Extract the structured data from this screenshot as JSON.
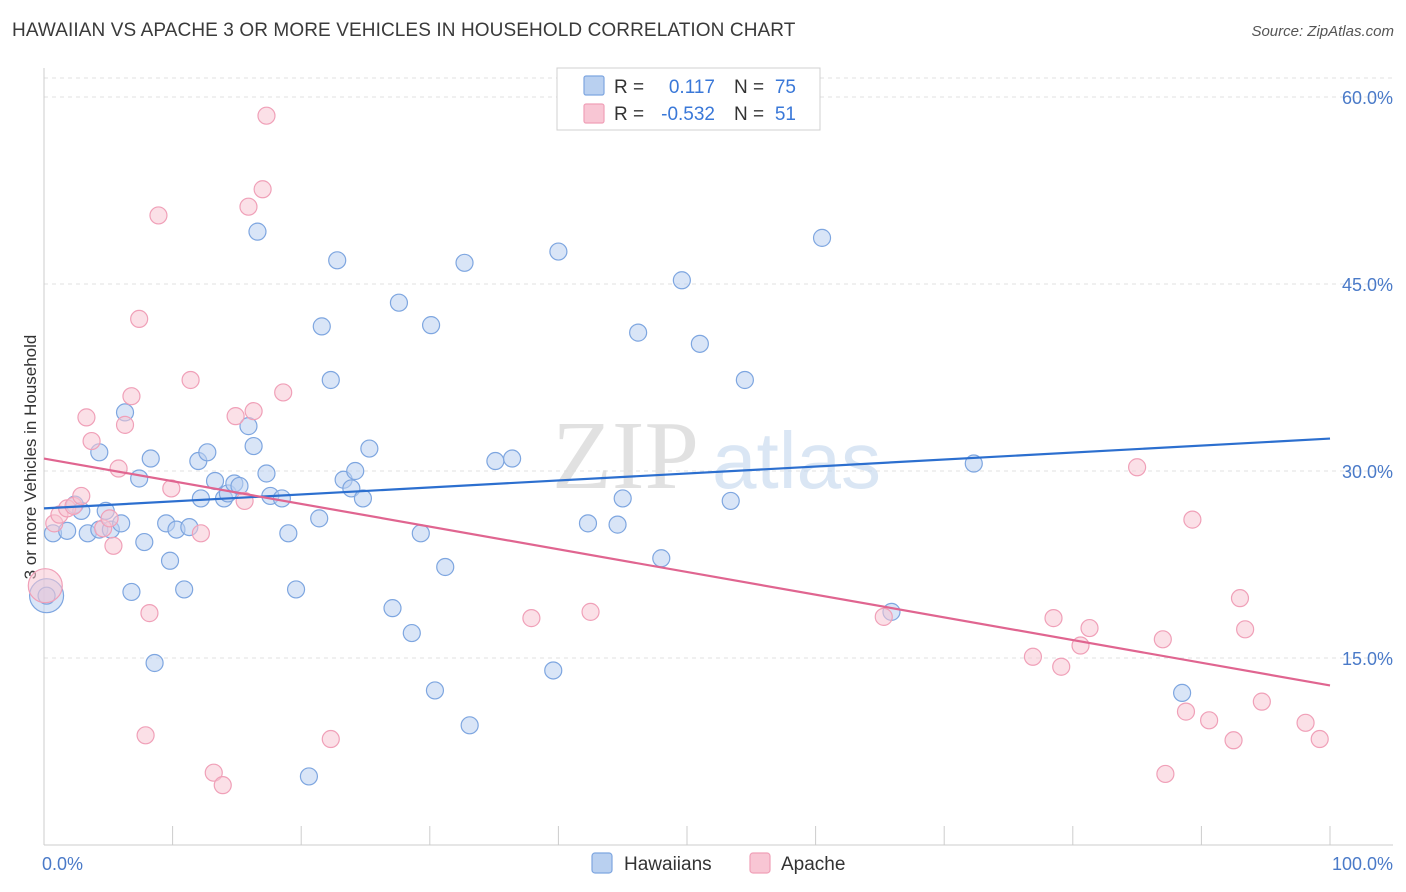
{
  "title": "HAWAIIAN VS APACHE 3 OR MORE VEHICLES IN HOUSEHOLD CORRELATION CHART",
  "source": "Source: ZipAtlas.com",
  "watermark": {
    "zip": "ZIP",
    "atlas": "atlas"
  },
  "colors": {
    "blue_fill": "#b9d0f0",
    "blue_stroke": "#7ea6e0",
    "blue_line": "#2c6fcf",
    "pink_fill": "#f8c6d4",
    "pink_stroke": "#f0a0b8",
    "pink_line": "#e06590",
    "value_text": "#3a78d8",
    "axis": "#cccccc"
  },
  "legend": {
    "rows": [
      {
        "r_label": "R =",
        "r_value": "0.117",
        "n_label": "N =",
        "n_value": "75",
        "color": "#b9d0f0",
        "stroke": "#7ea6e0"
      },
      {
        "r_label": "R =",
        "r_value": "-0.532",
        "n_label": "N =",
        "n_value": "51",
        "color": "#f8c6d4",
        "stroke": "#f0a0b8"
      }
    ]
  },
  "chart_data": {
    "type": "scatter",
    "title": "HAWAIIAN VS APACHE 3 OR MORE VEHICLES IN HOUSEHOLD CORRELATION CHART",
    "xlabel": "",
    "ylabel": "3 or more Vehicles in Household",
    "xlim": [
      0,
      100
    ],
    "ylim": [
      0,
      65
    ],
    "x_tick_labels": [
      "0.0%",
      "100.0%"
    ],
    "y_ticks": [
      15,
      30,
      45,
      60
    ],
    "y_tick_labels": [
      "15.0%",
      "30.0%",
      "45.0%",
      "60.0%"
    ],
    "legend_position": "bottom-center",
    "series": [
      {
        "name": "Hawaiians",
        "r": 0.117,
        "n": 75,
        "trend": {
          "x": [
            0,
            100
          ],
          "y": [
            27.0,
            32.6
          ]
        },
        "points": [
          [
            0.2,
            20.0,
            "big"
          ],
          [
            0.7,
            25.0
          ],
          [
            1.8,
            25.2
          ],
          [
            2.4,
            27.3
          ],
          [
            2.9,
            26.8
          ],
          [
            3.4,
            25.0
          ],
          [
            4.3,
            25.3
          ],
          [
            4.3,
            31.5
          ],
          [
            4.8,
            26.8
          ],
          [
            5.2,
            25.3
          ],
          [
            6.0,
            25.8
          ],
          [
            6.3,
            34.7
          ],
          [
            6.8,
            20.3
          ],
          [
            7.4,
            29.4
          ],
          [
            7.8,
            24.3
          ],
          [
            8.3,
            31.0
          ],
          [
            8.6,
            14.6
          ],
          [
            9.5,
            25.8
          ],
          [
            9.8,
            22.8
          ],
          [
            10.3,
            25.3
          ],
          [
            10.9,
            20.5
          ],
          [
            11.3,
            25.5
          ],
          [
            12.0,
            30.8
          ],
          [
            12.2,
            27.8
          ],
          [
            12.7,
            31.5
          ],
          [
            13.3,
            29.2
          ],
          [
            14.0,
            27.8
          ],
          [
            14.3,
            28.2
          ],
          [
            14.8,
            29.0
          ],
          [
            15.2,
            28.8
          ],
          [
            15.9,
            33.6
          ],
          [
            16.3,
            32.0
          ],
          [
            16.6,
            49.2
          ],
          [
            17.3,
            29.8
          ],
          [
            17.6,
            28.0
          ],
          [
            18.5,
            27.8
          ],
          [
            19.0,
            25.0
          ],
          [
            19.6,
            20.5
          ],
          [
            20.6,
            5.5
          ],
          [
            21.4,
            26.2
          ],
          [
            21.6,
            41.6
          ],
          [
            22.3,
            37.3
          ],
          [
            22.8,
            46.9
          ],
          [
            23.3,
            29.3
          ],
          [
            23.9,
            28.6
          ],
          [
            24.2,
            30.0
          ],
          [
            24.8,
            27.8
          ],
          [
            25.3,
            31.8
          ],
          [
            27.1,
            19.0
          ],
          [
            27.6,
            43.5
          ],
          [
            28.6,
            17.0
          ],
          [
            29.3,
            25.0
          ],
          [
            30.1,
            41.7
          ],
          [
            30.4,
            12.4
          ],
          [
            31.2,
            22.3
          ],
          [
            32.7,
            46.7
          ],
          [
            33.1,
            9.6
          ],
          [
            35.1,
            30.8
          ],
          [
            36.4,
            31.0
          ],
          [
            39.6,
            14.0
          ],
          [
            40.0,
            47.6
          ],
          [
            42.3,
            25.8
          ],
          [
            44.6,
            25.7
          ],
          [
            45.0,
            27.8
          ],
          [
            46.2,
            41.1
          ],
          [
            48.0,
            23.0
          ],
          [
            49.6,
            45.3
          ],
          [
            51.0,
            40.2
          ],
          [
            53.4,
            27.6
          ],
          [
            54.5,
            37.3
          ],
          [
            60.5,
            48.7
          ],
          [
            65.9,
            18.7
          ],
          [
            72.3,
            30.6
          ],
          [
            88.5,
            12.2
          ],
          [
            0.2,
            20.0
          ]
        ]
      },
      {
        "name": "Apache",
        "r": -0.532,
        "n": 51,
        "trend": {
          "x": [
            0,
            100
          ],
          "y": [
            31.0,
            12.8
          ]
        },
        "points": [
          [
            0.1,
            20.8,
            "big"
          ],
          [
            0.8,
            25.8
          ],
          [
            1.2,
            26.5
          ],
          [
            1.8,
            27.0
          ],
          [
            2.3,
            27.2
          ],
          [
            2.9,
            28.0
          ],
          [
            3.3,
            34.3
          ],
          [
            3.7,
            32.4
          ],
          [
            4.6,
            25.4
          ],
          [
            5.1,
            26.2
          ],
          [
            5.4,
            24.0
          ],
          [
            5.8,
            30.2
          ],
          [
            6.3,
            33.7
          ],
          [
            6.8,
            36.0
          ],
          [
            7.4,
            42.2
          ],
          [
            7.9,
            8.8
          ],
          [
            8.2,
            18.6
          ],
          [
            8.9,
            50.5
          ],
          [
            9.9,
            28.6
          ],
          [
            11.4,
            37.3
          ],
          [
            12.2,
            25.0
          ],
          [
            13.2,
            5.8
          ],
          [
            13.9,
            4.8
          ],
          [
            14.9,
            34.4
          ],
          [
            15.6,
            27.6
          ],
          [
            15.9,
            51.2
          ],
          [
            16.3,
            34.8
          ],
          [
            17.0,
            52.6
          ],
          [
            17.3,
            58.5
          ],
          [
            18.6,
            36.3
          ],
          [
            22.3,
            8.5
          ],
          [
            37.9,
            18.2
          ],
          [
            42.5,
            18.7
          ],
          [
            65.3,
            18.3
          ],
          [
            76.9,
            15.1
          ],
          [
            78.5,
            18.2
          ],
          [
            79.1,
            14.3
          ],
          [
            80.6,
            16.0
          ],
          [
            81.3,
            17.4
          ],
          [
            85.0,
            30.3
          ],
          [
            87.0,
            16.5
          ],
          [
            87.2,
            5.7
          ],
          [
            88.8,
            10.7
          ],
          [
            89.3,
            26.1
          ],
          [
            90.6,
            10.0
          ],
          [
            92.5,
            8.4
          ],
          [
            93.0,
            19.8
          ],
          [
            93.4,
            17.3
          ],
          [
            94.7,
            11.5
          ],
          [
            98.1,
            9.8
          ],
          [
            99.2,
            8.5
          ]
        ]
      }
    ]
  },
  "bottom_legend": [
    {
      "label": "Hawaiians",
      "color": "#b9d0f0",
      "stroke": "#7ea6e0"
    },
    {
      "label": "Apache",
      "color": "#f8c6d4",
      "stroke": "#f0a0b8"
    }
  ]
}
